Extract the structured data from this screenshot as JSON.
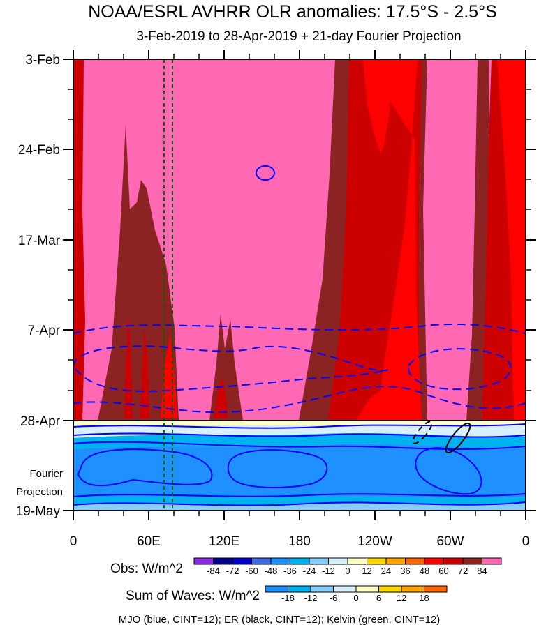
{
  "chart_data": {
    "type": "hovmoller",
    "title": "NOAA/ESRL AVHRR OLR anomalies: 17.5°S - 2.5°S",
    "subtitle": "3-Feb-2019 to 28-Apr-2019 + 21-day Fourier Projection",
    "y_ticks": [
      "3-Feb",
      "24-Feb",
      "17-Mar",
      "7-Apr",
      "28-Apr"
    ],
    "y_tick_projection": [
      "Fourier",
      "Projection",
      "19-May"
    ],
    "x_ticks": [
      "0",
      "60E",
      "120E",
      "180",
      "120W",
      "60W",
      "0"
    ],
    "obs_legend": {
      "label": "Obs: W/m^2",
      "levels": [
        "-84",
        "-72",
        "-60",
        "-48",
        "-36",
        "-24",
        "-12",
        "0",
        "12",
        "24",
        "36",
        "48",
        "60",
        "72",
        "84"
      ],
      "colors": [
        "#8a2be2",
        "#00008b",
        "#0000cd",
        "#4169e1",
        "#1e90ff",
        "#00b2ee",
        "#87cefa",
        "#d8f0ff",
        "#ffffc8",
        "#ffd700",
        "#ffa500",
        "#ff6600",
        "#ff0000",
        "#cc0000",
        "#8b2323",
        "#ff69b4"
      ]
    },
    "waves_legend": {
      "label": "Sum of Waves: W/m^2",
      "levels": [
        "-18",
        "-12",
        "-6",
        "0",
        "6",
        "12",
        "18"
      ],
      "colors": [
        "#1e90ff",
        "#00b2ee",
        "#87cefa",
        "#d8f0ff",
        "#ffffc8",
        "#ffd700",
        "#ffa500",
        "#ff6600"
      ]
    },
    "footer": "MJO (blue, CINT=12); ER (black, CINT=12); Kelvin (green, CINT=12)",
    "field_colors": {
      "pink": "#ff69b4",
      "red": "#ff0000",
      "darkred": "#cc0000",
      "brown": "#8b2323",
      "mjo": "#0000ff",
      "er": "#000000",
      "kelvin": "#006400",
      "proj_blue": "#1e90ff",
      "proj_light": "#00b2ee",
      "proj_pale": "#87cefa",
      "proj_ice": "#d8f0ff",
      "proj_yellow": "#ffffc8"
    }
  }
}
